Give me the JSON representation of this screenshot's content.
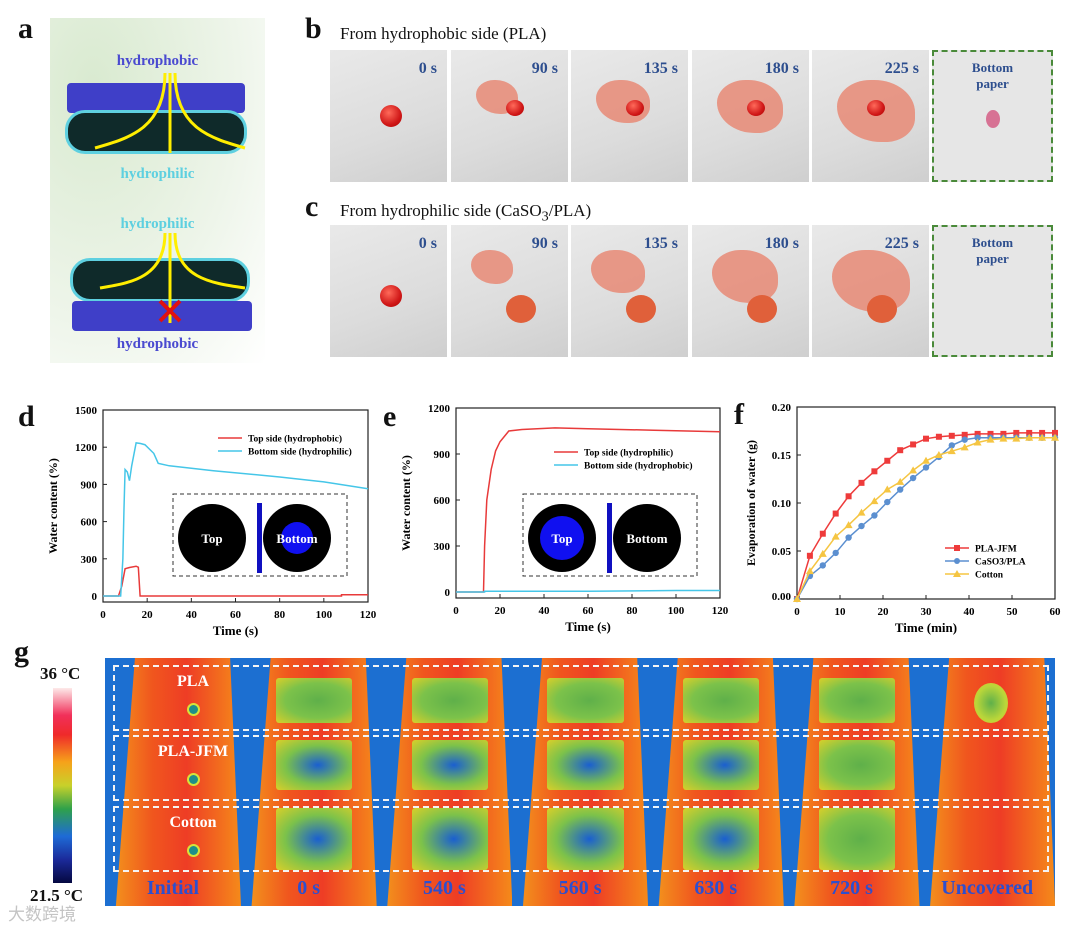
{
  "panel_labels": [
    "a",
    "b",
    "c",
    "d",
    "e",
    "f",
    "g"
  ],
  "panel_a": {
    "top_label_1": "hydrophobic",
    "bottom_label_1": "hydrophilic",
    "top_label_2": "hydrophilic",
    "bottom_label_2": "hydrophobic",
    "colors": {
      "hydrophobic": "#4a4ad0",
      "hydrophilic": "#5ed0e0",
      "arrow": "#ffee00",
      "block": "#e01010"
    }
  },
  "panel_b": {
    "title": "From hydrophobic side (PLA)",
    "frames": [
      "0 s",
      "90 s",
      "135 s",
      "180 s",
      "225 s"
    ],
    "bottom": "Bottom\npaper"
  },
  "panel_c": {
    "title_pre": "From hydrophilic side (CaSO",
    "title_sub": "3",
    "title_post": "/PLA)",
    "frames": [
      "0 s",
      "90 s",
      "135 s",
      "180 s",
      "225 s"
    ],
    "bottom": "Bottom\npaper"
  },
  "chart_data": [
    {
      "id": "d",
      "type": "line",
      "xlabel": "Time (s)",
      "ylabel": "Water content (%)",
      "xlim": [
        0,
        120
      ],
      "ylim": [
        0,
        1500
      ],
      "xticks": [
        0,
        20,
        40,
        60,
        80,
        100,
        120
      ],
      "yticks": [
        0,
        300,
        600,
        900,
        1200,
        1500
      ],
      "legend": "top-right",
      "series": [
        {
          "name": "Top side (hydrophobic)",
          "color": "#e83a3a",
          "points": [
            [
              0,
              0
            ],
            [
              7,
              0
            ],
            [
              8.5,
              80
            ],
            [
              10,
              220
            ],
            [
              12,
              230
            ],
            [
              15,
              240
            ],
            [
              16,
              232
            ],
            [
              16.8,
              0
            ],
            [
              108,
              0
            ],
            [
              108,
              10
            ],
            [
              120,
              10
            ]
          ]
        },
        {
          "name": "Bottom side (hydrophilic)",
          "color": "#45c6e8",
          "points": [
            [
              0,
              0
            ],
            [
              8,
              0
            ],
            [
              9,
              300
            ],
            [
              9.5,
              700
            ],
            [
              10,
              1020
            ],
            [
              11,
              1000
            ],
            [
              12,
              930
            ],
            [
              13,
              1050
            ],
            [
              15,
              1235
            ],
            [
              17,
              1230
            ],
            [
              19,
              1220
            ],
            [
              23,
              1150
            ],
            [
              25,
              1070
            ],
            [
              30,
              1050
            ],
            [
              50,
              1010
            ],
            [
              80,
              960
            ],
            [
              100,
              920
            ],
            [
              120,
              865
            ]
          ]
        }
      ],
      "inset": {
        "left": "Top",
        "right": "Bottom",
        "right_fill": "#1010f0"
      }
    },
    {
      "id": "e",
      "type": "line",
      "xlabel": "Time (s)",
      "ylabel": "Water content (%)",
      "xlim": [
        0,
        120
      ],
      "ylim": [
        0,
        1200
      ],
      "xticks": [
        0,
        20,
        40,
        60,
        80,
        100,
        120
      ],
      "yticks": [
        0,
        300,
        600,
        900,
        1200
      ],
      "legend": "top-right",
      "series": [
        {
          "name": "Top side (hydrophilic)",
          "color": "#e83a3a",
          "points": [
            [
              0,
              0
            ],
            [
              12.5,
              0
            ],
            [
              13,
              300
            ],
            [
              14,
              600
            ],
            [
              16,
              800
            ],
            [
              18,
              920
            ],
            [
              20,
              980
            ],
            [
              24,
              1050
            ],
            [
              30,
              1060
            ],
            [
              45,
              1070
            ],
            [
              60,
              1065
            ],
            [
              90,
              1055
            ],
            [
              120,
              1045
            ]
          ]
        },
        {
          "name": "Bottom side (hydrophobic)",
          "color": "#45c6e8",
          "points": [
            [
              0,
              0
            ],
            [
              13,
              0
            ],
            [
              13,
              5
            ],
            [
              60,
              5
            ],
            [
              100,
              10
            ],
            [
              120,
              10
            ]
          ]
        }
      ],
      "inset": {
        "left": "Top",
        "right": "Bottom",
        "left_fill": "#1010f0"
      }
    },
    {
      "id": "f",
      "type": "line",
      "xlabel": "Time (min)",
      "ylabel": "Evaporation of water (g)",
      "xlim": [
        0,
        60
      ],
      "ylim": [
        0,
        0.2
      ],
      "xticks": [
        0,
        10,
        20,
        30,
        40,
        50,
        60
      ],
      "yticks": [
        "0.00",
        "0.05",
        "0.10",
        "0.15",
        "0.20"
      ],
      "legend": "bottom-right",
      "x": [
        0,
        3,
        6,
        9,
        12,
        15,
        18,
        21,
        24,
        27,
        30,
        33,
        36,
        39,
        42,
        45,
        48,
        51,
        54,
        57,
        60
      ],
      "series": [
        {
          "name": "PLA-JFM",
          "color": "#ee3b3b",
          "marker": "square",
          "values": [
            0,
            0.045,
            0.068,
            0.089,
            0.107,
            0.121,
            0.133,
            0.144,
            0.155,
            0.161,
            0.167,
            0.169,
            0.17,
            0.171,
            0.172,
            0.172,
            0.172,
            0.173,
            0.173,
            0.173,
            0.173
          ]
        },
        {
          "name": "CaSO3/PLA",
          "color": "#5b8fd0",
          "marker": "circle",
          "values": [
            0,
            0.024,
            0.035,
            0.048,
            0.064,
            0.076,
            0.087,
            0.101,
            0.114,
            0.126,
            0.137,
            0.148,
            0.16,
            0.166,
            0.168,
            0.168,
            0.168,
            0.168,
            0.168,
            0.168,
            0.168
          ]
        },
        {
          "name": "Cotton",
          "color": "#f5c542",
          "marker": "triangle",
          "values": [
            0,
            0.029,
            0.047,
            0.065,
            0.077,
            0.09,
            0.102,
            0.114,
            0.122,
            0.134,
            0.144,
            0.15,
            0.154,
            0.158,
            0.163,
            0.166,
            0.167,
            0.167,
            0.168,
            0.168,
            0.168
          ]
        }
      ]
    }
  ],
  "panel_g": {
    "scale_max": "36 °C",
    "scale_min": "21.5 °C",
    "rows": [
      "PLA",
      "PLA-JFM",
      "Cotton"
    ],
    "columns": [
      "Initial",
      "0 s",
      "540 s",
      "560 s",
      "630 s",
      "720 s",
      "Uncovered"
    ],
    "watermark": "大数跨境"
  }
}
